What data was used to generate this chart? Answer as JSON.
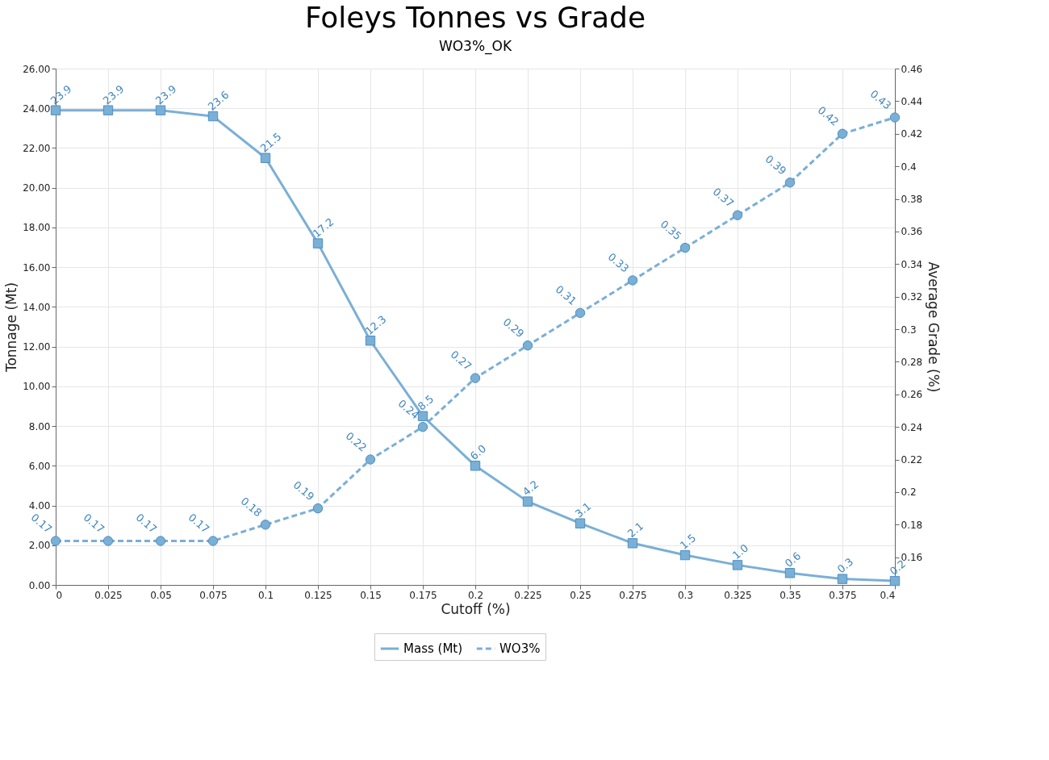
{
  "chart_data": {
    "type": "line",
    "title": "Foleys Tonnes vs Grade",
    "subtitle": "WO3%_OK",
    "xlabel": "Cutoff (%)",
    "ylabel": "Tonnage (Mt)",
    "y2label": "Average Grade (%)",
    "x": [
      0,
      0.025,
      0.05,
      0.075,
      0.1,
      0.125,
      0.15,
      0.175,
      0.2,
      0.225,
      0.25,
      0.275,
      0.3,
      0.325,
      0.35,
      0.375,
      0.4
    ],
    "series": [
      {
        "name": "Mass (Mt)",
        "color": "#7aafd6",
        "marker": "square",
        "line_style": "solid",
        "values": [
          23.9,
          23.9,
          23.9,
          23.6,
          21.5,
          17.2,
          12.3,
          8.5,
          6.0,
          4.2,
          3.1,
          2.1,
          1.5,
          1.0,
          0.6,
          0.3,
          0.2
        ],
        "value_labels": [
          "23.9",
          "23.9",
          "23.9",
          "23.6",
          "21.5",
          "17.2",
          "12.3",
          "8.5",
          "6.0",
          "4.2",
          "3.1",
          "2.1",
          "1.5",
          "1.0",
          "0.6",
          "0.3",
          "0.2"
        ]
      },
      {
        "name": "WO3%",
        "color": "#7aafd6",
        "marker": "circle",
        "line_style": "dashed",
        "axis": "y2",
        "values": [
          0.17,
          0.17,
          0.17,
          0.17,
          0.18,
          0.19,
          0.22,
          0.24,
          0.27,
          0.29,
          0.31,
          0.33,
          0.35,
          0.37,
          0.39,
          0.42,
          0.43
        ],
        "value_labels": [
          "0.17",
          "0.17",
          "0.17",
          "0.17",
          "0.18",
          "0.19",
          "0.22",
          "0.24",
          "0.27",
          "0.29",
          "0.31",
          "0.33",
          "0.35",
          "0.37",
          "0.39",
          "0.42",
          "0.43"
        ]
      }
    ],
    "xlim": [
      0,
      0.4
    ],
    "xticks": [
      0,
      0.025,
      0.05,
      0.075,
      0.1,
      0.125,
      0.15,
      0.175,
      0.2,
      0.225,
      0.25,
      0.275,
      0.3,
      0.325,
      0.35,
      0.375,
      0.4
    ],
    "ylim": [
      0,
      26
    ],
    "yticks": [
      {
        "value": 0,
        "label": "0.00"
      },
      {
        "value": 2,
        "label": "2.00"
      },
      {
        "value": 4,
        "label": "4.00"
      },
      {
        "value": 6,
        "label": "6.00"
      },
      {
        "value": 8,
        "label": "8.00"
      },
      {
        "value": 10,
        "label": "10.00"
      },
      {
        "value": 12,
        "label": "12.00"
      },
      {
        "value": 14,
        "label": "14.00"
      },
      {
        "value": 16,
        "label": "16.00"
      },
      {
        "value": 18,
        "label": "18.00"
      },
      {
        "value": 20,
        "label": "20.00"
      },
      {
        "value": 22,
        "label": "22.00"
      },
      {
        "value": 24,
        "label": "24.00"
      },
      {
        "value": 26,
        "label": "26.00"
      }
    ],
    "y2lim": [
      0.143,
      0.46
    ],
    "y2ticks": [
      0.16,
      0.18,
      0.2,
      0.22,
      0.24,
      0.26,
      0.28,
      0.3,
      0.32,
      0.34,
      0.36,
      0.38,
      0.4,
      0.42,
      0.44,
      0.46
    ],
    "grid": true,
    "legend": "bottom"
  }
}
